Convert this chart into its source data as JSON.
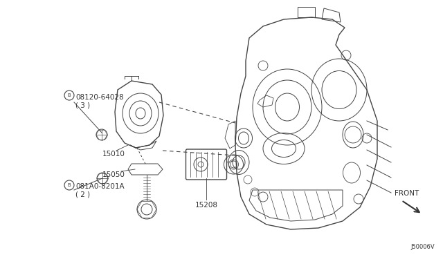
{
  "bg_color": "#ffffff",
  "line_color": "#444444",
  "text_color": "#333333",
  "fig_width": 6.4,
  "fig_height": 3.72,
  "diagram_id": "J50006V",
  "label_B1": "B 08120-64028\n( 3 )",
  "label_15010": "15010",
  "label_15050": "15050",
  "label_B2": "B 081A0-8201A\n( 2 )",
  "label_15208": "15208",
  "label_FRONT": "FRONT"
}
